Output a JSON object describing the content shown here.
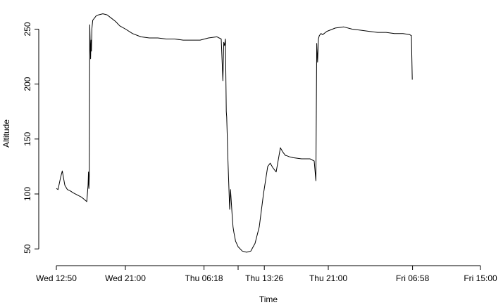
{
  "chart_data": {
    "type": "line",
    "xlabel": "Time",
    "ylabel": "Altitude",
    "x_ticks": [
      {
        "label": "Wed 12:50",
        "hours": 0
      },
      {
        "label": "Wed 21:00",
        "hours": 8.1667
      },
      {
        "label": "Thu 06:18",
        "hours": 17.4667
      },
      {
        "label": "Thu 13:26",
        "hours": 24.6
      },
      {
        "label": "Thu 21:00",
        "hours": 32.1667
      },
      {
        "label": "Fri 06:58",
        "hours": 42.1333
      },
      {
        "label": "Fri 15:00",
        "hours": 50.1667
      }
    ],
    "extra_tick_hours": [
      21.5
    ],
    "xlim": [
      0,
      50.1667
    ],
    "y_ticks": [
      50,
      100,
      150,
      200,
      250
    ],
    "ylim": [
      45,
      265
    ],
    "series": [
      {
        "x": [
          0,
          0.2,
          0.5,
          0.7,
          1.0,
          1.3,
          1.6,
          2.0,
          2.5,
          3.0,
          3.3,
          3.6,
          3.75,
          3.8,
          3.85,
          3.9,
          3.95,
          4.05,
          4.1,
          4.15,
          4.2,
          4.3,
          4.5,
          4.7,
          5.0,
          5.5,
          6.0,
          6.5,
          7.0,
          7.5,
          8.2,
          9.0,
          10.0,
          11.0,
          12.0,
          13.0,
          14.0,
          15.0,
          16.0,
          17.0,
          18.0,
          19.0,
          19.5,
          19.7,
          19.8,
          19.9,
          20.0,
          20.1,
          20.15,
          20.3,
          20.5,
          20.6,
          20.8,
          20.9,
          21.0,
          21.2,
          21.5,
          22.0,
          22.5,
          23.0,
          23.5,
          24.0,
          24.5,
          25.0,
          25.3,
          25.6,
          26.0,
          26.5,
          26.8,
          27.0,
          27.1,
          27.2,
          27.5,
          28.0,
          29.0,
          30.0,
          30.5,
          30.7,
          30.8,
          30.9,
          31.0,
          31.1,
          31.3,
          31.5,
          32.0,
          33.0,
          34.0,
          35.0,
          36.0,
          37.0,
          38.0,
          39.0,
          40.0,
          41.0,
          41.8,
          42.0,
          42.1
        ],
        "y": [
          105,
          104,
          115,
          121,
          108,
          104,
          103,
          101,
          99,
          97,
          95,
          93,
          108,
          120,
          105,
          118,
          254,
          223,
          240,
          230,
          250,
          258,
          260,
          262,
          263,
          264,
          263,
          260,
          257,
          253,
          250,
          246,
          243,
          242,
          242,
          241,
          241,
          240,
          240,
          240,
          242,
          243,
          241,
          203,
          238,
          235,
          241,
          175,
          170,
          130,
          86,
          104,
          80,
          70,
          65,
          57,
          52,
          48,
          47,
          48,
          55,
          70,
          100,
          125,
          128,
          124,
          120,
          142,
          138,
          136,
          135,
          135,
          134,
          133,
          132,
          132,
          130,
          112,
          237,
          220,
          241,
          244,
          246,
          245,
          248,
          251,
          252,
          250,
          249,
          248,
          247,
          247,
          246,
          246,
          245,
          244,
          204
        ]
      }
    ]
  }
}
